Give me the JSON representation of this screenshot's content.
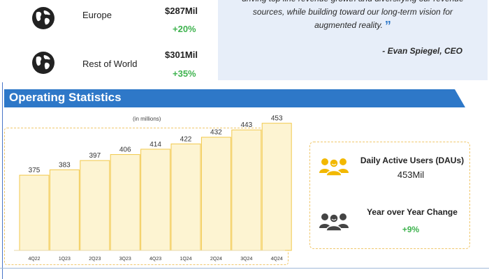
{
  "regions": [
    {
      "name": "Europe",
      "revenue": "$287Mil",
      "change": "+20%",
      "icon": "globe-icon"
    },
    {
      "name": "Rest of World",
      "revenue": "$301Mil",
      "change": "+35%",
      "icon": "globe-icon"
    }
  ],
  "quote": {
    "lines": [
      "driving top line revenue growth and diversifying our revenue",
      "sources, while building toward our long-term vision for",
      "augmented reality."
    ],
    "author": "- Evan Spiegel, CEO"
  },
  "section": {
    "title": "Operating Statistics"
  },
  "chart_data": {
    "type": "bar",
    "unit_label": "(in millions)",
    "categories": [
      "4Q22",
      "1Q23",
      "2Q23",
      "3Q23",
      "4Q23",
      "1Q24",
      "2Q24",
      "3Q24",
      "4Q24"
    ],
    "values": [
      375,
      383,
      397,
      406,
      414,
      422,
      432,
      443,
      453
    ],
    "bar_color": "#fdf4d2",
    "bar_border_color": "#f2c94c"
  },
  "stats": {
    "dau_title": "Daily Active Users (DAUs)",
    "dau_value": "453Mil",
    "dau_icon": "users-group-icon",
    "yoy_title": "Year over Year Change",
    "yoy_value": "+9%",
    "yoy_icon": "users-group-icon"
  },
  "colors": {
    "accent_blue": "#2e78c8",
    "positive_green": "#3fb34f",
    "gold": "#f2b800"
  }
}
